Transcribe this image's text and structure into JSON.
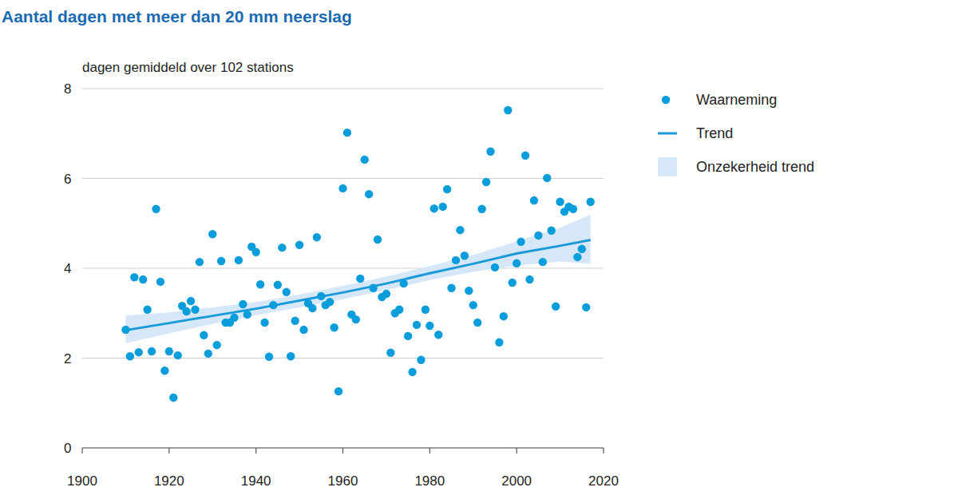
{
  "chart_data": {
    "type": "scatter",
    "title": "Aantal dagen met meer dan 20 mm neerslag",
    "y_label": "dagen gemiddeld over 102 stations",
    "xlim": [
      1900,
      2020
    ],
    "xticks": [
      1900,
      1920,
      1940,
      1960,
      1980,
      2000,
      2020
    ],
    "ylim": [
      0,
      8
    ],
    "yticks": [
      0,
      2,
      4,
      6,
      8
    ],
    "grid": true,
    "legend": "right",
    "series": [
      {
        "name": "Waarneming",
        "type": "scatter",
        "marker": "circle",
        "color": "#0a9ddb",
        "x": [
          1910,
          1911,
          1912,
          1913,
          1914,
          1915,
          1916,
          1917,
          1918,
          1919,
          1920,
          1921,
          1922,
          1923,
          1924,
          1925,
          1926,
          1927,
          1928,
          1929,
          1930,
          1931,
          1932,
          1933,
          1934,
          1935,
          1936,
          1937,
          1938,
          1939,
          1940,
          1941,
          1942,
          1943,
          1944,
          1945,
          1946,
          1947,
          1948,
          1949,
          1950,
          1951,
          1952,
          1953,
          1954,
          1955,
          1956,
          1957,
          1958,
          1959,
          1960,
          1961,
          1962,
          1963,
          1964,
          1965,
          1966,
          1967,
          1968,
          1969,
          1970,
          1971,
          1972,
          1973,
          1974,
          1975,
          1976,
          1977,
          1978,
          1979,
          1980,
          1981,
          1982,
          1983,
          1984,
          1985,
          1986,
          1987,
          1988,
          1989,
          1990,
          1991,
          1992,
          1993,
          1994,
          1995,
          1996,
          1997,
          1998,
          1999,
          2000,
          2001,
          2002,
          2003,
          2004,
          2005,
          2006,
          2007,
          2008,
          2009,
          2010,
          2011,
          2012,
          2013,
          2014,
          2015,
          2016,
          2017
        ],
        "values": [
          2.63,
          2.04,
          3.8,
          2.13,
          3.75,
          3.08,
          2.15,
          5.32,
          3.7,
          1.72,
          2.15,
          1.12,
          2.06,
          3.16,
          3.04,
          3.27,
          3.08,
          4.14,
          2.51,
          2.1,
          4.76,
          2.29,
          4.16,
          2.79,
          2.79,
          2.9,
          4.18,
          3.2,
          2.97,
          4.48,
          4.36,
          3.64,
          2.79,
          2.03,
          3.18,
          3.63,
          4.46,
          3.47,
          2.04,
          2.83,
          4.52,
          2.63,
          3.22,
          3.11,
          4.69,
          3.38,
          3.18,
          3.25,
          2.68,
          1.26,
          5.78,
          7.02,
          2.97,
          2.86,
          3.77,
          6.42,
          5.65,
          3.56,
          4.64,
          3.36,
          3.43,
          2.12,
          3.0,
          3.08,
          3.66,
          2.49,
          1.69,
          2.74,
          1.96,
          3.08,
          2.72,
          5.33,
          2.52,
          5.37,
          5.76,
          3.56,
          4.18,
          4.85,
          4.28,
          3.5,
          3.18,
          2.79,
          5.32,
          5.92,
          6.6,
          4.02,
          2.35,
          2.93,
          7.52,
          3.68,
          4.11,
          4.59,
          6.51,
          3.75,
          5.51,
          4.73,
          4.14,
          6.01,
          4.84,
          3.15,
          5.48,
          5.26,
          5.37,
          5.32,
          4.25,
          4.43,
          3.13,
          5.48
        ]
      },
      {
        "name": "Trend",
        "type": "line",
        "line_style": "solid",
        "color": "#1a9ad8",
        "x": [
          1910,
          1920,
          1930,
          1940,
          1950,
          1960,
          1970,
          1980,
          1990,
          2000,
          2010,
          2017
        ],
        "values": [
          2.62,
          2.78,
          2.94,
          3.1,
          3.28,
          3.46,
          3.66,
          3.89,
          4.1,
          4.33,
          4.5,
          4.63
        ]
      },
      {
        "name": "Onzekerheid trend",
        "type": "area",
        "color": "#d6e8f8",
        "x": [
          1910,
          1920,
          1930,
          1940,
          1950,
          1960,
          1970,
          1980,
          1990,
          2000,
          2010,
          2017
        ],
        "lower": [
          2.33,
          2.55,
          2.76,
          2.95,
          3.13,
          3.31,
          3.51,
          3.74,
          3.92,
          4.06,
          4.15,
          4.1
        ],
        "upper": [
          2.95,
          3.02,
          3.13,
          3.25,
          3.42,
          3.61,
          3.82,
          4.05,
          4.3,
          4.6,
          4.9,
          5.2
        ]
      }
    ]
  }
}
